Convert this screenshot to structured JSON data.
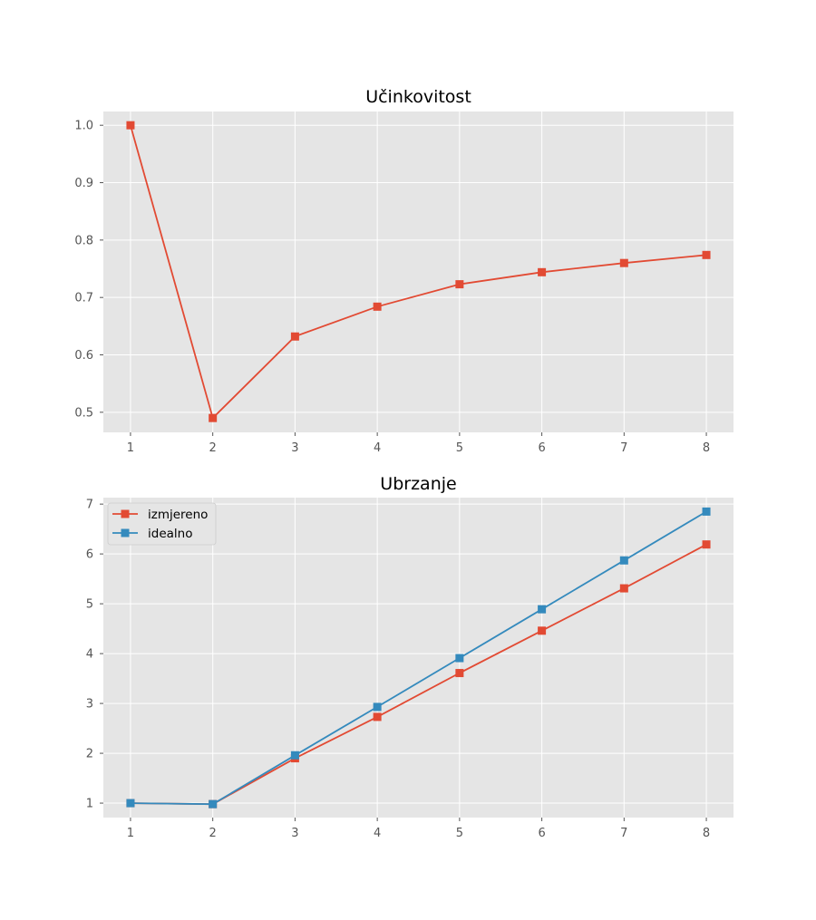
{
  "chart_data": [
    {
      "type": "line",
      "title": "Učinkovitost",
      "xlabel": "",
      "ylabel": "",
      "x": [
        1,
        2,
        3,
        4,
        5,
        6,
        7,
        8
      ],
      "xlim": [
        0.67,
        8.33
      ],
      "ylim": [
        0.465,
        1.024
      ],
      "yticks": [
        0.5,
        0.6,
        0.7,
        0.8,
        0.9,
        1.0
      ],
      "ytick_labels": [
        "0.5",
        "0.6",
        "0.7",
        "0.8",
        "0.9",
        "1.0"
      ],
      "xticks": [
        1,
        2,
        3,
        4,
        5,
        6,
        7,
        8
      ],
      "xtick_labels": [
        "1",
        "2",
        "3",
        "4",
        "5",
        "6",
        "7",
        "8"
      ],
      "grid": true,
      "legend": null,
      "series": [
        {
          "values": [
            1.0,
            0.49,
            0.632,
            0.684,
            0.723,
            0.744,
            0.76,
            0.774
          ],
          "color": "#E24A33",
          "marker": "square"
        }
      ]
    },
    {
      "type": "line",
      "title": "Ubrzanje",
      "xlabel": "",
      "ylabel": "",
      "x": [
        1,
        2,
        3,
        4,
        5,
        6,
        7,
        8
      ],
      "xlim": [
        0.67,
        8.33
      ],
      "ylim": [
        0.71,
        7.13
      ],
      "yticks": [
        1,
        2,
        3,
        4,
        5,
        6,
        7
      ],
      "ytick_labels": [
        "1",
        "2",
        "3",
        "4",
        "5",
        "6",
        "7"
      ],
      "xticks": [
        1,
        2,
        3,
        4,
        5,
        6,
        7,
        8
      ],
      "xtick_labels": [
        "1",
        "2",
        "3",
        "4",
        "5",
        "6",
        "7",
        "8"
      ],
      "grid": true,
      "legend": "top-left",
      "series": [
        {
          "name": "izmjereno",
          "values": [
            1.0,
            0.98,
            1.9,
            2.73,
            3.61,
            4.46,
            5.31,
            6.19
          ],
          "color": "#E24A33",
          "marker": "square"
        },
        {
          "name": "idealno",
          "values": [
            1.0,
            0.98,
            1.96,
            2.93,
            3.91,
            4.89,
            5.87,
            6.85
          ],
          "color": "#348ABD",
          "marker": "square"
        }
      ]
    }
  ]
}
